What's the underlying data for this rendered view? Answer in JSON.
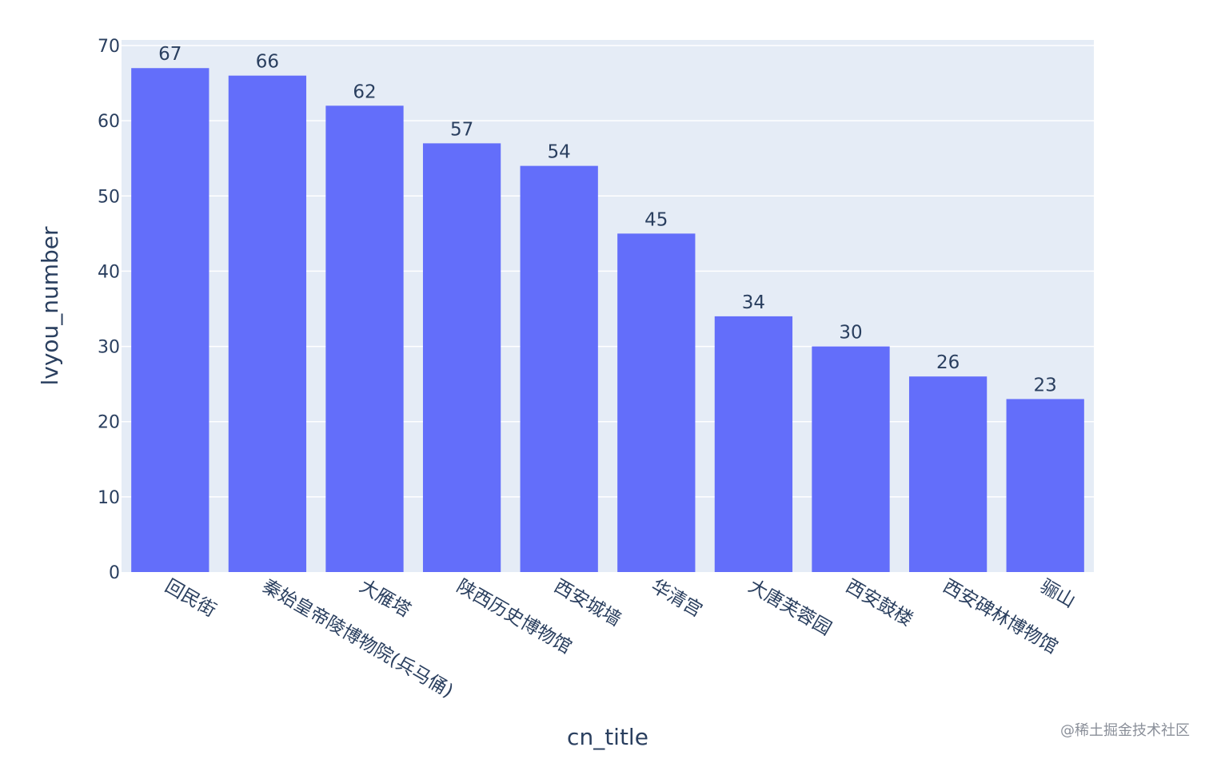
{
  "chart_data": {
    "type": "bar",
    "categories": [
      "回民街",
      "秦始皇帝陵博物院(兵马俑)",
      "大雁塔",
      "陕西历史博物馆",
      "西安城墙",
      "华清宫",
      "大唐芙蓉园",
      "西安鼓楼",
      "西安碑林博物馆",
      "骊山"
    ],
    "values": [
      67,
      66,
      62,
      57,
      54,
      45,
      34,
      30,
      26,
      23
    ],
    "xlabel": "cn_title",
    "ylabel": "lvyou_number",
    "ylim": [
      0,
      70
    ],
    "yticks": [
      0,
      10,
      20,
      30,
      40,
      50,
      60,
      70
    ],
    "grid": true,
    "bar_color": "#636efa",
    "plot_bg": "#e5ecf6",
    "text_color": "#2a3f5f"
  },
  "watermark": "@稀土掘金技术社区"
}
